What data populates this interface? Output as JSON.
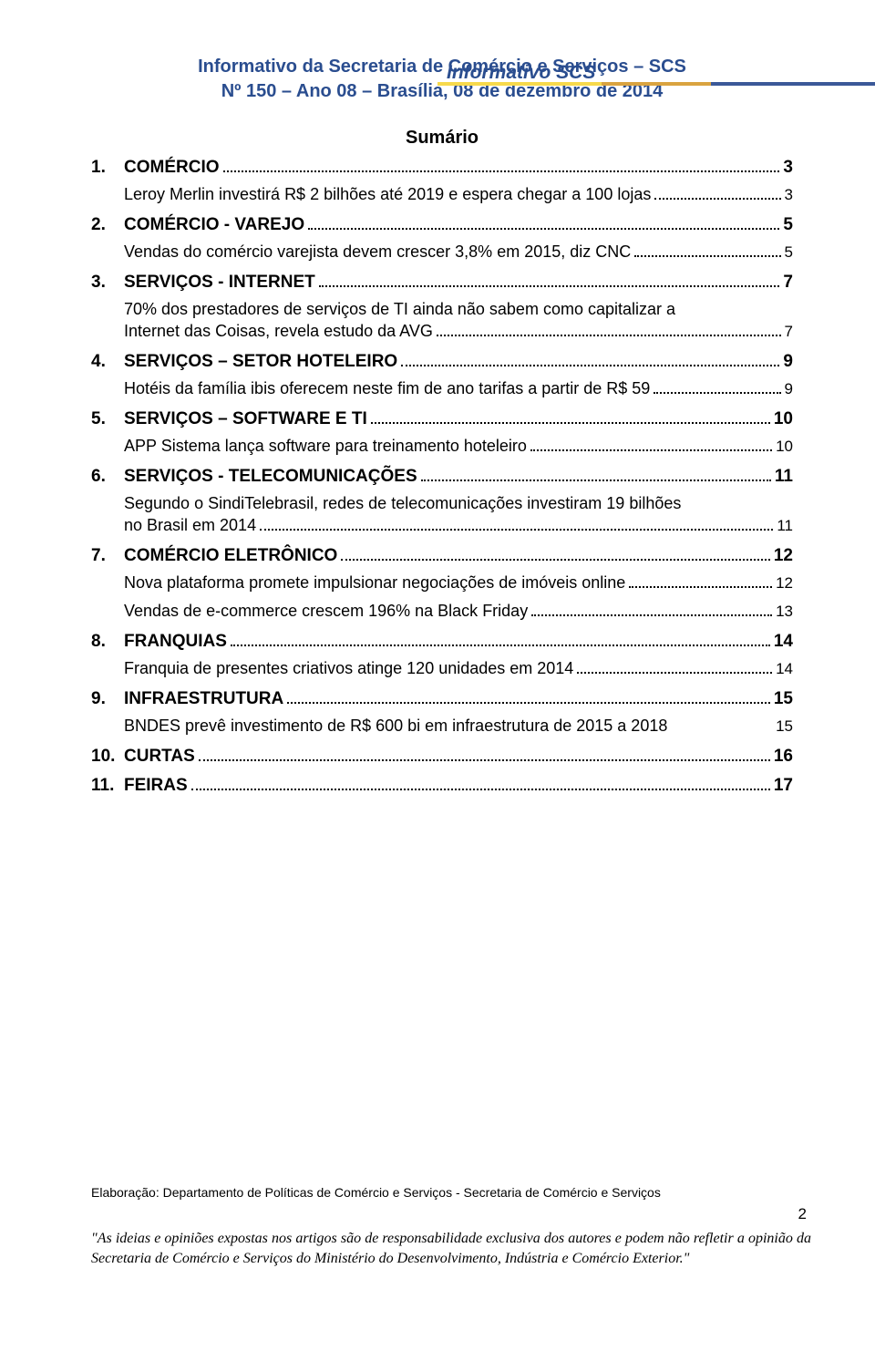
{
  "header": {
    "brand": "Informativo SCS",
    "title_line1": "Informativo da Secretaria de Comércio e Serviços – SCS",
    "title_line2": "Nº 150 – Ano 08 – Brasília, 08 de dezembro de 2014",
    "sumario": "Sumário"
  },
  "colors": {
    "brand_blue": "#2a4d8f",
    "bar_yellow": "#f7d94c",
    "bar_orange": "#d9a340",
    "bar_blue": "#3b5998"
  },
  "toc": [
    {
      "num": "1.",
      "label": "COMÉRCIO",
      "page": "3",
      "subs": [
        {
          "text": "Leroy Merlin investirá R$ 2 bilhões até 2019 e espera chegar a 100 lojas",
          "page": "3",
          "multi": false
        }
      ]
    },
    {
      "num": "2.",
      "label": "COMÉRCIO - VAREJO",
      "page": "5",
      "subs": [
        {
          "text": "Vendas do comércio varejista devem crescer 3,8% em 2015, diz CNC",
          "page": "5",
          "multi": false
        }
      ]
    },
    {
      "num": "3.",
      "label": "SERVIÇOS - INTERNET",
      "page": "7",
      "subs": [
        {
          "text_pre": "70% dos prestadores de serviços de TI ainda não sabem como capitalizar a",
          "text_last": "Internet das Coisas, revela estudo da AVG",
          "page": "7",
          "multi": true
        }
      ]
    },
    {
      "num": "4.",
      "label": "SERVIÇOS – SETOR HOTELEIRO",
      "page": "9",
      "subs": [
        {
          "text": "Hotéis da família ibis oferecem neste fim de ano tarifas a partir de R$ 59",
          "page": "9",
          "multi": false
        }
      ]
    },
    {
      "num": "5.",
      "label": "SERVIÇOS – SOFTWARE E TI",
      "page": "10",
      "subs": [
        {
          "text": "APP Sistema lança software para treinamento hoteleiro",
          "page": "10",
          "multi": false
        }
      ]
    },
    {
      "num": "6.",
      "label": "SERVIÇOS - TELECOMUNICAÇÕES",
      "page": "11",
      "subs": [
        {
          "text_pre": "Segundo o SindiTelebrasil, redes de telecomunicações investiram 19 bilhões",
          "text_last": "no Brasil em 2014",
          "page": "11",
          "multi": true
        }
      ]
    },
    {
      "num": "7.",
      "label": "COMÉRCIO ELETRÔNICO",
      "page": "12",
      "subs": [
        {
          "text": "Nova plataforma promete impulsionar negociações de imóveis online",
          "page": "12",
          "multi": false
        },
        {
          "text": "Vendas de e-commerce crescem 196% na Black Friday",
          "page": "13",
          "multi": false
        }
      ]
    },
    {
      "num": "8.",
      "label": "FRANQUIAS",
      "page": "14",
      "subs": [
        {
          "text": "Franquia de presentes criativos atinge 120 unidades em 2014",
          "page": "14",
          "multi": false
        }
      ]
    },
    {
      "num": "9.",
      "label": "INFRAESTRUTURA",
      "page": "15",
      "subs": [
        {
          "text": "BNDES prevê investimento de R$ 600 bi em infraestrutura de 2015 a 2018",
          "page": "15",
          "multi": false,
          "nodots": true
        }
      ]
    },
    {
      "num": "10.",
      "label": "CURTAS",
      "page": "16",
      "subs": []
    },
    {
      "num": "11.",
      "label": "FEIRAS",
      "page": "17",
      "subs": []
    }
  ],
  "footer": {
    "elaboration": "Elaboração: Departamento de Políticas de Comércio e Serviços - Secretaria de Comércio e Serviços",
    "page_number": "2",
    "disclaimer": "\"As ideias e opiniões expostas nos artigos são de responsabilidade exclusiva dos autores e podem não refletir a opinião da Secretaria de Comércio e Serviços do Ministério do Desenvolvimento, Indústria e Comércio Exterior.\""
  }
}
